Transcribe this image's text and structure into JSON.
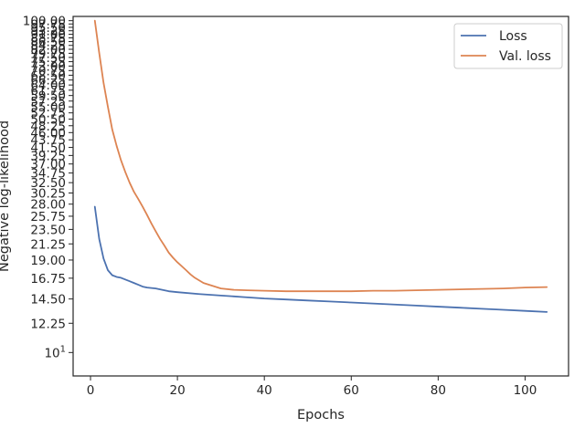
{
  "chart_data": {
    "type": "line",
    "xlabel": "Epochs",
    "ylabel": "Negative log-likelihood",
    "xlim": [
      -4,
      110
    ],
    "ylim": [
      8.5,
      103
    ],
    "yscale": "log",
    "grid": false,
    "legend": "top-right",
    "colors": {
      "loss": "#4c72b0",
      "val": "#dd8452",
      "frame": "#262626"
    },
    "x_ticks": [
      0,
      20,
      40,
      60,
      80,
      100
    ],
    "y_ticks": [
      {
        "v": 10,
        "base": "10",
        "exp": "1"
      },
      {
        "v": 12.25,
        "t": "12.25"
      },
      {
        "v": 14.5,
        "t": "14.50"
      },
      {
        "v": 16.75,
        "t": "16.75"
      },
      {
        "v": 19.0,
        "t": "19.00"
      },
      {
        "v": 21.25,
        "t": "21.25"
      },
      {
        "v": 23.5,
        "t": "23.50"
      },
      {
        "v": 25.75,
        "t": "25.75"
      },
      {
        "v": 28.0,
        "t": "28.00"
      },
      {
        "v": 30.25,
        "t": "30.25"
      },
      {
        "v": 32.5,
        "t": "32.50"
      },
      {
        "v": 34.75,
        "t": "34.75"
      },
      {
        "v": 37.0,
        "t": "37.00"
      },
      {
        "v": 39.25,
        "t": "39.25"
      },
      {
        "v": 41.5,
        "t": "41.50"
      },
      {
        "v": 43.75,
        "t": "43.75"
      },
      {
        "v": 46.0,
        "t": "46.00"
      },
      {
        "v": 48.25,
        "t": "48.25"
      },
      {
        "v": 50.5,
        "t": "50.50"
      },
      {
        "v": 52.75,
        "t": "52.75"
      },
      {
        "v": 55.0,
        "t": "55.00"
      },
      {
        "v": 57.25,
        "t": "57.25"
      },
      {
        "v": 59.5,
        "t": "59.50"
      },
      {
        "v": 61.75,
        "t": "61.75"
      },
      {
        "v": 64.0,
        "t": "64.00"
      },
      {
        "v": 66.25,
        "t": "66.25"
      },
      {
        "v": 68.5,
        "t": "68.50"
      },
      {
        "v": 70.75,
        "t": "70.75"
      },
      {
        "v": 73.0,
        "t": "73.00"
      },
      {
        "v": 75.25,
        "t": "75.25"
      },
      {
        "v": 77.5,
        "t": "77.50"
      },
      {
        "v": 79.75,
        "t": "79.75"
      },
      {
        "v": 82.0,
        "t": "82.00"
      },
      {
        "v": 84.25,
        "t": "84.25"
      },
      {
        "v": 86.5,
        "t": "86.50"
      },
      {
        "v": 88.75,
        "t": "88.75"
      },
      {
        "v": 91.0,
        "t": "91.00"
      },
      {
        "v": 93.25,
        "t": "93.25"
      },
      {
        "v": 95.5,
        "t": "95.50"
      },
      {
        "v": 97.75,
        "t": "97.75"
      },
      {
        "v": 100.0,
        "t": "100.00"
      }
    ],
    "series": [
      {
        "name": "Loss",
        "color": "#4c72b0",
        "points": [
          [
            1,
            27.5
          ],
          [
            2,
            22.0
          ],
          [
            3,
            19.2
          ],
          [
            4,
            17.7
          ],
          [
            5,
            17.1
          ],
          [
            6,
            16.9
          ],
          [
            7,
            16.8
          ],
          [
            8,
            16.6
          ],
          [
            9,
            16.4
          ],
          [
            10,
            16.2
          ],
          [
            11,
            16.0
          ],
          [
            12,
            15.8
          ],
          [
            13,
            15.7
          ],
          [
            15,
            15.6
          ],
          [
            16,
            15.5
          ],
          [
            18,
            15.3
          ],
          [
            20,
            15.2
          ],
          [
            25,
            15.0
          ],
          [
            30,
            14.85
          ],
          [
            35,
            14.7
          ],
          [
            40,
            14.55
          ],
          [
            45,
            14.45
          ],
          [
            50,
            14.35
          ],
          [
            55,
            14.25
          ],
          [
            60,
            14.15
          ],
          [
            65,
            14.05
          ],
          [
            70,
            13.95
          ],
          [
            75,
            13.85
          ],
          [
            80,
            13.75
          ],
          [
            85,
            13.65
          ],
          [
            90,
            13.55
          ],
          [
            95,
            13.45
          ],
          [
            100,
            13.35
          ],
          [
            105,
            13.25
          ]
        ]
      },
      {
        "name": "Val. loss",
        "color": "#dd8452",
        "points": [
          [
            1,
            100
          ],
          [
            2,
            80
          ],
          [
            3,
            65
          ],
          [
            4,
            55
          ],
          [
            5,
            47
          ],
          [
            6,
            42
          ],
          [
            7,
            38
          ],
          [
            8,
            35
          ],
          [
            9,
            32.5
          ],
          [
            10,
            30.5
          ],
          [
            11,
            29
          ],
          [
            12,
            27.5
          ],
          [
            13,
            26
          ],
          [
            14,
            24.5
          ],
          [
            15,
            23.2
          ],
          [
            16,
            22.0
          ],
          [
            17,
            21.0
          ],
          [
            18,
            20.0
          ],
          [
            19,
            19.3
          ],
          [
            20,
            18.7
          ],
          [
            21,
            18.2
          ],
          [
            22,
            17.7
          ],
          [
            23,
            17.2
          ],
          [
            24,
            16.8
          ],
          [
            25,
            16.5
          ],
          [
            26,
            16.2
          ],
          [
            28,
            15.9
          ],
          [
            30,
            15.6
          ],
          [
            33,
            15.45
          ],
          [
            36,
            15.4
          ],
          [
            40,
            15.35
          ],
          [
            45,
            15.3
          ],
          [
            50,
            15.3
          ],
          [
            55,
            15.3
          ],
          [
            60,
            15.3
          ],
          [
            65,
            15.35
          ],
          [
            70,
            15.35
          ],
          [
            75,
            15.4
          ],
          [
            80,
            15.45
          ],
          [
            85,
            15.5
          ],
          [
            90,
            15.55
          ],
          [
            95,
            15.6
          ],
          [
            100,
            15.7
          ],
          [
            105,
            15.75
          ]
        ]
      }
    ]
  }
}
